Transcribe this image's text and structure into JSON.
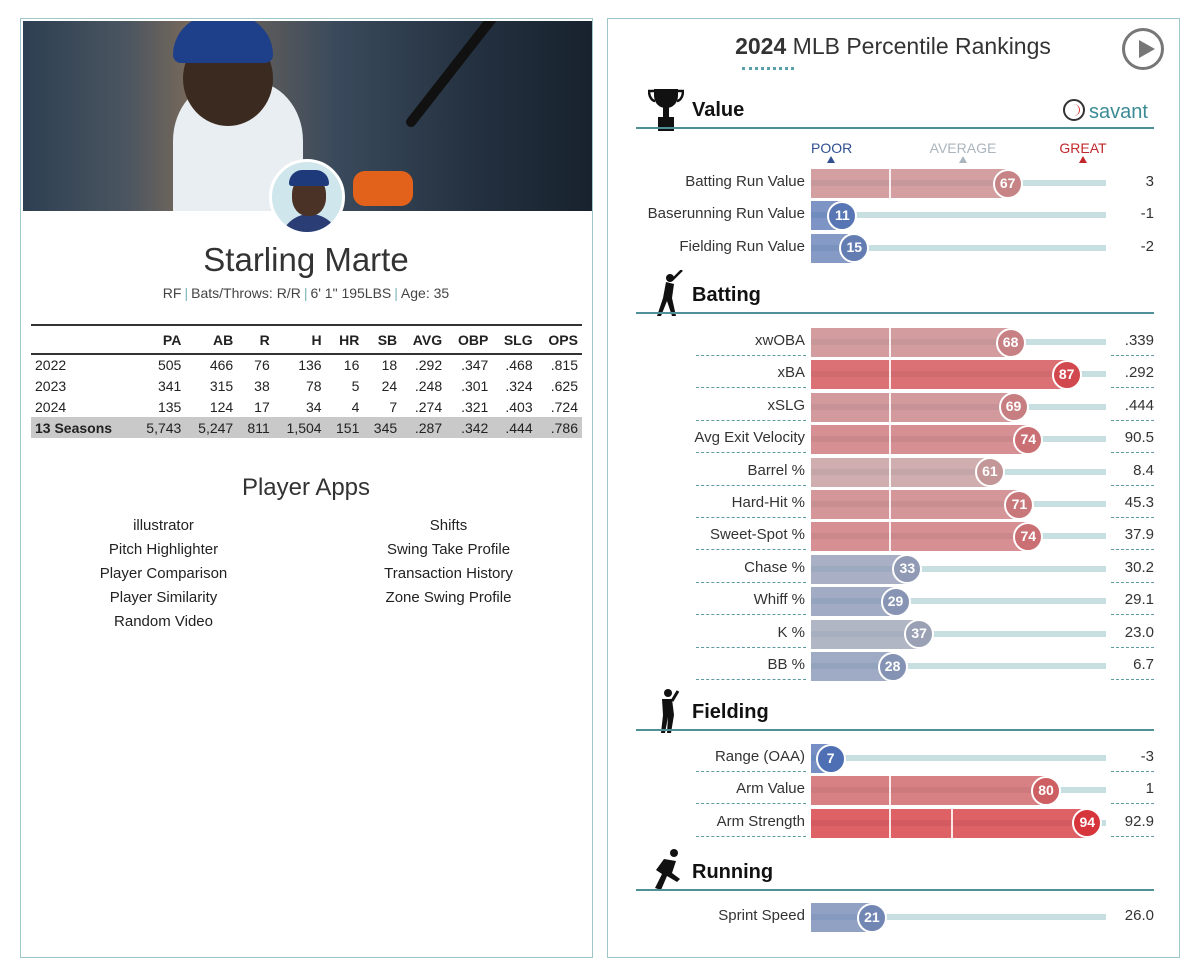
{
  "player": {
    "name": "Starling Marte",
    "position": "RF",
    "bats_throws": "Bats/Throws: R/R",
    "height_weight": "6' 1\" 195LBS",
    "age": "Age: 35"
  },
  "stats_table": {
    "headers": [
      "",
      "PA",
      "AB",
      "R",
      "H",
      "HR",
      "SB",
      "AVG",
      "OBP",
      "SLG",
      "OPS"
    ],
    "rows": [
      [
        "2022",
        "505",
        "466",
        "76",
        "136",
        "16",
        "18",
        ".292",
        ".347",
        ".468",
        ".815"
      ],
      [
        "2023",
        "341",
        "315",
        "38",
        "78",
        "5",
        "24",
        ".248",
        ".301",
        ".324",
        ".625"
      ],
      [
        "2024",
        "135",
        "124",
        "17",
        "34",
        "4",
        "7",
        ".274",
        ".321",
        ".403",
        ".724"
      ]
    ],
    "total": [
      "13 Seasons",
      "5,743",
      "5,247",
      "811",
      "1,504",
      "151",
      "345",
      ".287",
      ".342",
      ".444",
      ".786"
    ]
  },
  "apps": {
    "title": "Player Apps",
    "left": [
      "illustrator",
      "Pitch Highlighter",
      "Player Comparison",
      "Player Similarity",
      "Random Video"
    ],
    "right": [
      "Shifts",
      "Swing Take Profile",
      "Transaction History",
      "Zone Swing Profile"
    ]
  },
  "rankings": {
    "title_year": "2024",
    "title_rest": " MLB Percentile Rankings",
    "brand": "savant",
    "legend": {
      "poor": "POOR",
      "average": "AVERAGE",
      "great": "GREAT"
    },
    "sections": [
      {
        "title": "Value",
        "icon": "trophy-icon",
        "rows": [
          {
            "label": "Batting Run Value",
            "pct": 67,
            "value": "3"
          },
          {
            "label": "Baserunning Run Value",
            "pct": 11,
            "value": "-1"
          },
          {
            "label": "Fielding Run Value",
            "pct": 15,
            "value": "-2"
          }
        ]
      },
      {
        "title": "Batting",
        "icon": "batter-icon",
        "rows": [
          {
            "label": "xwOBA",
            "pct": 68,
            "value": ".339"
          },
          {
            "label": "xBA",
            "pct": 87,
            "value": ".292"
          },
          {
            "label": "xSLG",
            "pct": 69,
            "value": ".444"
          },
          {
            "label": "Avg Exit Velocity",
            "pct": 74,
            "value": "90.5"
          },
          {
            "label": "Barrel %",
            "pct": 61,
            "value": "8.4"
          },
          {
            "label": "Hard-Hit %",
            "pct": 71,
            "value": "45.3"
          },
          {
            "label": "Sweet-Spot %",
            "pct": 74,
            "value": "37.9"
          },
          {
            "label": "Chase %",
            "pct": 33,
            "value": "30.2"
          },
          {
            "label": "Whiff %",
            "pct": 29,
            "value": "29.1"
          },
          {
            "label": "K %",
            "pct": 37,
            "value": "23.0"
          },
          {
            "label": "BB %",
            "pct": 28,
            "value": "6.7"
          }
        ]
      },
      {
        "title": "Fielding",
        "icon": "fielder-icon",
        "rows": [
          {
            "label": "Range (OAA)",
            "pct": 7,
            "value": "-3"
          },
          {
            "label": "Arm Value",
            "pct": 80,
            "value": "1"
          },
          {
            "label": "Arm Strength",
            "pct": 94,
            "value": "92.9"
          }
        ]
      },
      {
        "title": "Running",
        "icon": "runner-icon",
        "rows": [
          {
            "label": "Sprint Speed",
            "pct": 21,
            "value": "26.0"
          }
        ]
      }
    ]
  },
  "colors": {
    "poor": "#3f66b2",
    "average": "#bdb6b6",
    "great": "#d8232a",
    "accent": "#4f8f98"
  }
}
